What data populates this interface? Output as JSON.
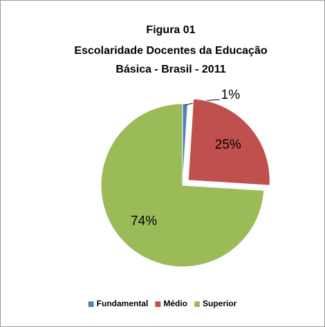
{
  "chart_data": {
    "type": "pie",
    "title": [
      "Figura 01",
      "Escolaridade  Docentes da Educação",
      "Básica - Brasil - 2011"
    ],
    "categories": [
      "Fundamental",
      "Médio",
      "Superior"
    ],
    "values": [
      1,
      25,
      74
    ],
    "value_labels": [
      "1%",
      "25%",
      "74%"
    ],
    "colors": [
      "#4f81bd",
      "#c0504d",
      "#9bbb59"
    ],
    "explode": [
      false,
      true,
      false
    ],
    "legend": "bottom"
  }
}
